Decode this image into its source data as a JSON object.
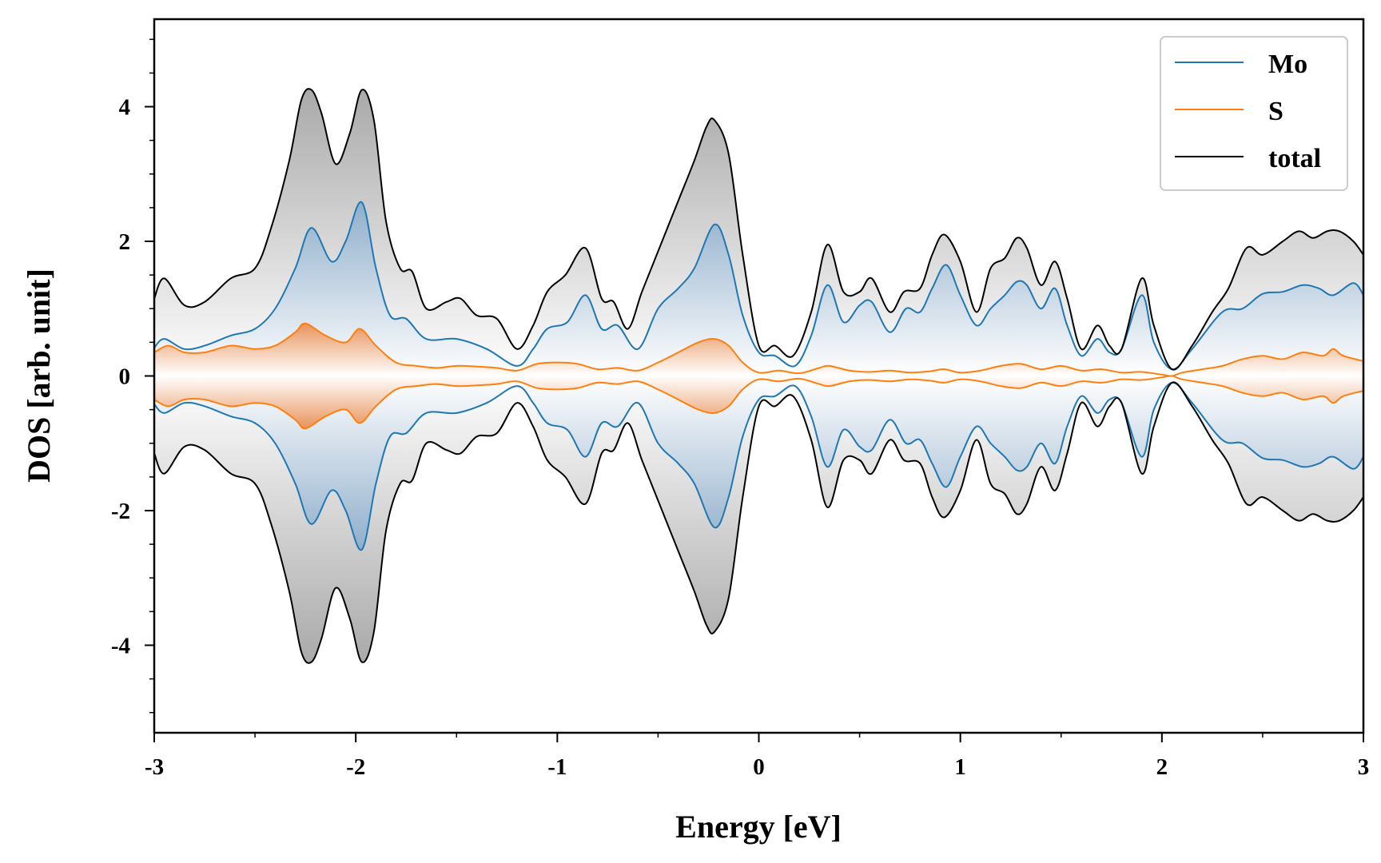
{
  "chart_data": {
    "type": "line",
    "title": "",
    "xlabel": "Energy [eV]",
    "ylabel": "DOS [arb. unit]",
    "xlim": [
      -3,
      3
    ],
    "ylim": [
      -5.3,
      5.3
    ],
    "xticks": [
      -3,
      -2,
      -1,
      0,
      1,
      2,
      3
    ],
    "xtick_labels": [
      "-3",
      "-2",
      "-1",
      "0",
      "1",
      "2",
      "3"
    ],
    "yticks": [
      -4,
      -2,
      0,
      2,
      4
    ],
    "ytick_labels": [
      "-4",
      "-2",
      "0",
      "2",
      "4"
    ],
    "grid": false,
    "legend_position": "top-right",
    "mirrored_spin_channels": true,
    "series": [
      {
        "name": "Mo",
        "color": "#1f77b4",
        "x": [
          -3.0,
          -2.95,
          -2.85,
          -2.75,
          -2.62,
          -2.5,
          -2.4,
          -2.3,
          -2.22,
          -2.12,
          -2.05,
          -1.97,
          -1.9,
          -1.83,
          -1.75,
          -1.65,
          -1.5,
          -1.35,
          -1.2,
          -1.12,
          -1.05,
          -0.95,
          -0.86,
          -0.78,
          -0.7,
          -0.6,
          -0.5,
          -0.4,
          -0.32,
          -0.22,
          -0.15,
          -0.08,
          0.0,
          0.08,
          0.18,
          0.26,
          0.34,
          0.42,
          0.5,
          0.56,
          0.65,
          0.73,
          0.8,
          0.86,
          0.93,
          1.0,
          1.08,
          1.15,
          1.22,
          1.28,
          1.33,
          1.4,
          1.47,
          1.53,
          1.6,
          1.68,
          1.74,
          1.8,
          1.9,
          1.96,
          2.05,
          2.15,
          2.3,
          2.4,
          2.5,
          2.6,
          2.7,
          2.78,
          2.85,
          2.95,
          3.0
        ],
        "values": [
          0.42,
          0.55,
          0.4,
          0.45,
          0.6,
          0.7,
          1.0,
          1.6,
          2.2,
          1.7,
          2.0,
          2.58,
          1.6,
          0.9,
          0.85,
          0.55,
          0.55,
          0.4,
          0.15,
          0.4,
          0.7,
          0.8,
          1.2,
          0.7,
          0.75,
          0.4,
          1.0,
          1.3,
          1.6,
          2.25,
          1.8,
          0.9,
          0.35,
          0.3,
          0.15,
          0.6,
          1.35,
          0.8,
          1.05,
          1.1,
          0.65,
          1.0,
          0.95,
          1.3,
          1.65,
          1.2,
          0.75,
          1.0,
          1.2,
          1.4,
          1.35,
          1.0,
          1.3,
          0.75,
          0.3,
          0.55,
          0.35,
          0.4,
          1.2,
          0.5,
          0.1,
          0.4,
          0.95,
          1.0,
          1.22,
          1.25,
          1.35,
          1.3,
          1.2,
          1.38,
          1.2
        ]
      },
      {
        "name": "S",
        "color": "#ff7f0e",
        "x": [
          -3.0,
          -2.93,
          -2.85,
          -2.75,
          -2.62,
          -2.5,
          -2.4,
          -2.3,
          -2.25,
          -2.15,
          -2.05,
          -1.98,
          -1.9,
          -1.8,
          -1.7,
          -1.6,
          -1.5,
          -1.4,
          -1.3,
          -1.2,
          -1.1,
          -1.0,
          -0.9,
          -0.8,
          -0.7,
          -0.6,
          -0.5,
          -0.4,
          -0.3,
          -0.22,
          -0.15,
          -0.08,
          0.0,
          0.1,
          0.2,
          0.3,
          0.35,
          0.45,
          0.55,
          0.65,
          0.75,
          0.85,
          0.92,
          1.0,
          1.1,
          1.2,
          1.3,
          1.4,
          1.5,
          1.6,
          1.7,
          1.8,
          1.9,
          2.0,
          2.05,
          2.1,
          2.2,
          2.3,
          2.4,
          2.5,
          2.6,
          2.7,
          2.8,
          2.85,
          2.9,
          3.0
        ],
        "values": [
          0.35,
          0.45,
          0.35,
          0.35,
          0.45,
          0.4,
          0.45,
          0.65,
          0.78,
          0.6,
          0.5,
          0.7,
          0.45,
          0.2,
          0.15,
          0.12,
          0.15,
          0.14,
          0.12,
          0.08,
          0.18,
          0.2,
          0.18,
          0.1,
          0.12,
          0.08,
          0.2,
          0.35,
          0.5,
          0.55,
          0.45,
          0.2,
          0.05,
          0.08,
          0.04,
          0.12,
          0.15,
          0.08,
          0.06,
          0.08,
          0.05,
          0.07,
          0.1,
          0.05,
          0.08,
          0.15,
          0.18,
          0.1,
          0.15,
          0.08,
          0.1,
          0.05,
          0.06,
          0.02,
          0.0,
          0.05,
          0.1,
          0.15,
          0.25,
          0.3,
          0.25,
          0.35,
          0.3,
          0.4,
          0.3,
          0.22
        ]
      },
      {
        "name": "total",
        "color": "#000000",
        "x": [
          -3.0,
          -2.95,
          -2.85,
          -2.75,
          -2.62,
          -2.5,
          -2.42,
          -2.33,
          -2.27,
          -2.22,
          -2.17,
          -2.1,
          -2.03,
          -1.97,
          -1.91,
          -1.85,
          -1.78,
          -1.72,
          -1.65,
          -1.55,
          -1.48,
          -1.4,
          -1.3,
          -1.2,
          -1.12,
          -1.05,
          -0.96,
          -0.86,
          -0.78,
          -0.72,
          -0.65,
          -0.58,
          -0.5,
          -0.4,
          -0.32,
          -0.26,
          -0.22,
          -0.15,
          -0.08,
          0.0,
          0.08,
          0.17,
          0.26,
          0.34,
          0.42,
          0.5,
          0.56,
          0.65,
          0.72,
          0.8,
          0.86,
          0.92,
          1.0,
          1.08,
          1.15,
          1.22,
          1.28,
          1.33,
          1.4,
          1.47,
          1.53,
          1.6,
          1.68,
          1.74,
          1.8,
          1.9,
          1.96,
          2.05,
          2.15,
          2.25,
          2.33,
          2.42,
          2.5,
          2.6,
          2.68,
          2.75,
          2.82,
          2.88,
          2.95,
          3.0
        ],
        "values": [
          1.15,
          1.45,
          1.05,
          1.1,
          1.45,
          1.6,
          2.2,
          3.2,
          4.1,
          4.25,
          3.9,
          3.15,
          3.6,
          4.25,
          3.8,
          2.3,
          1.6,
          1.55,
          1.0,
          1.1,
          1.15,
          0.9,
          0.85,
          0.4,
          0.75,
          1.25,
          1.5,
          1.9,
          1.15,
          1.1,
          0.7,
          1.25,
          1.85,
          2.6,
          3.2,
          3.7,
          3.8,
          3.3,
          1.8,
          0.45,
          0.45,
          0.3,
          0.95,
          1.95,
          1.25,
          1.25,
          1.45,
          0.95,
          1.25,
          1.3,
          1.8,
          2.1,
          1.7,
          0.95,
          1.6,
          1.75,
          2.05,
          1.9,
          1.35,
          1.7,
          1.15,
          0.4,
          0.75,
          0.45,
          0.4,
          1.45,
          0.75,
          0.1,
          0.45,
          0.95,
          1.3,
          1.9,
          1.8,
          2.0,
          2.15,
          2.05,
          2.15,
          2.15,
          2.0,
          1.8
        ]
      }
    ],
    "legend": [
      {
        "label": "Mo",
        "color": "#1f77b4"
      },
      {
        "label": "S",
        "color": "#ff7f0e"
      },
      {
        "label": "total",
        "color": "#000000"
      }
    ]
  }
}
